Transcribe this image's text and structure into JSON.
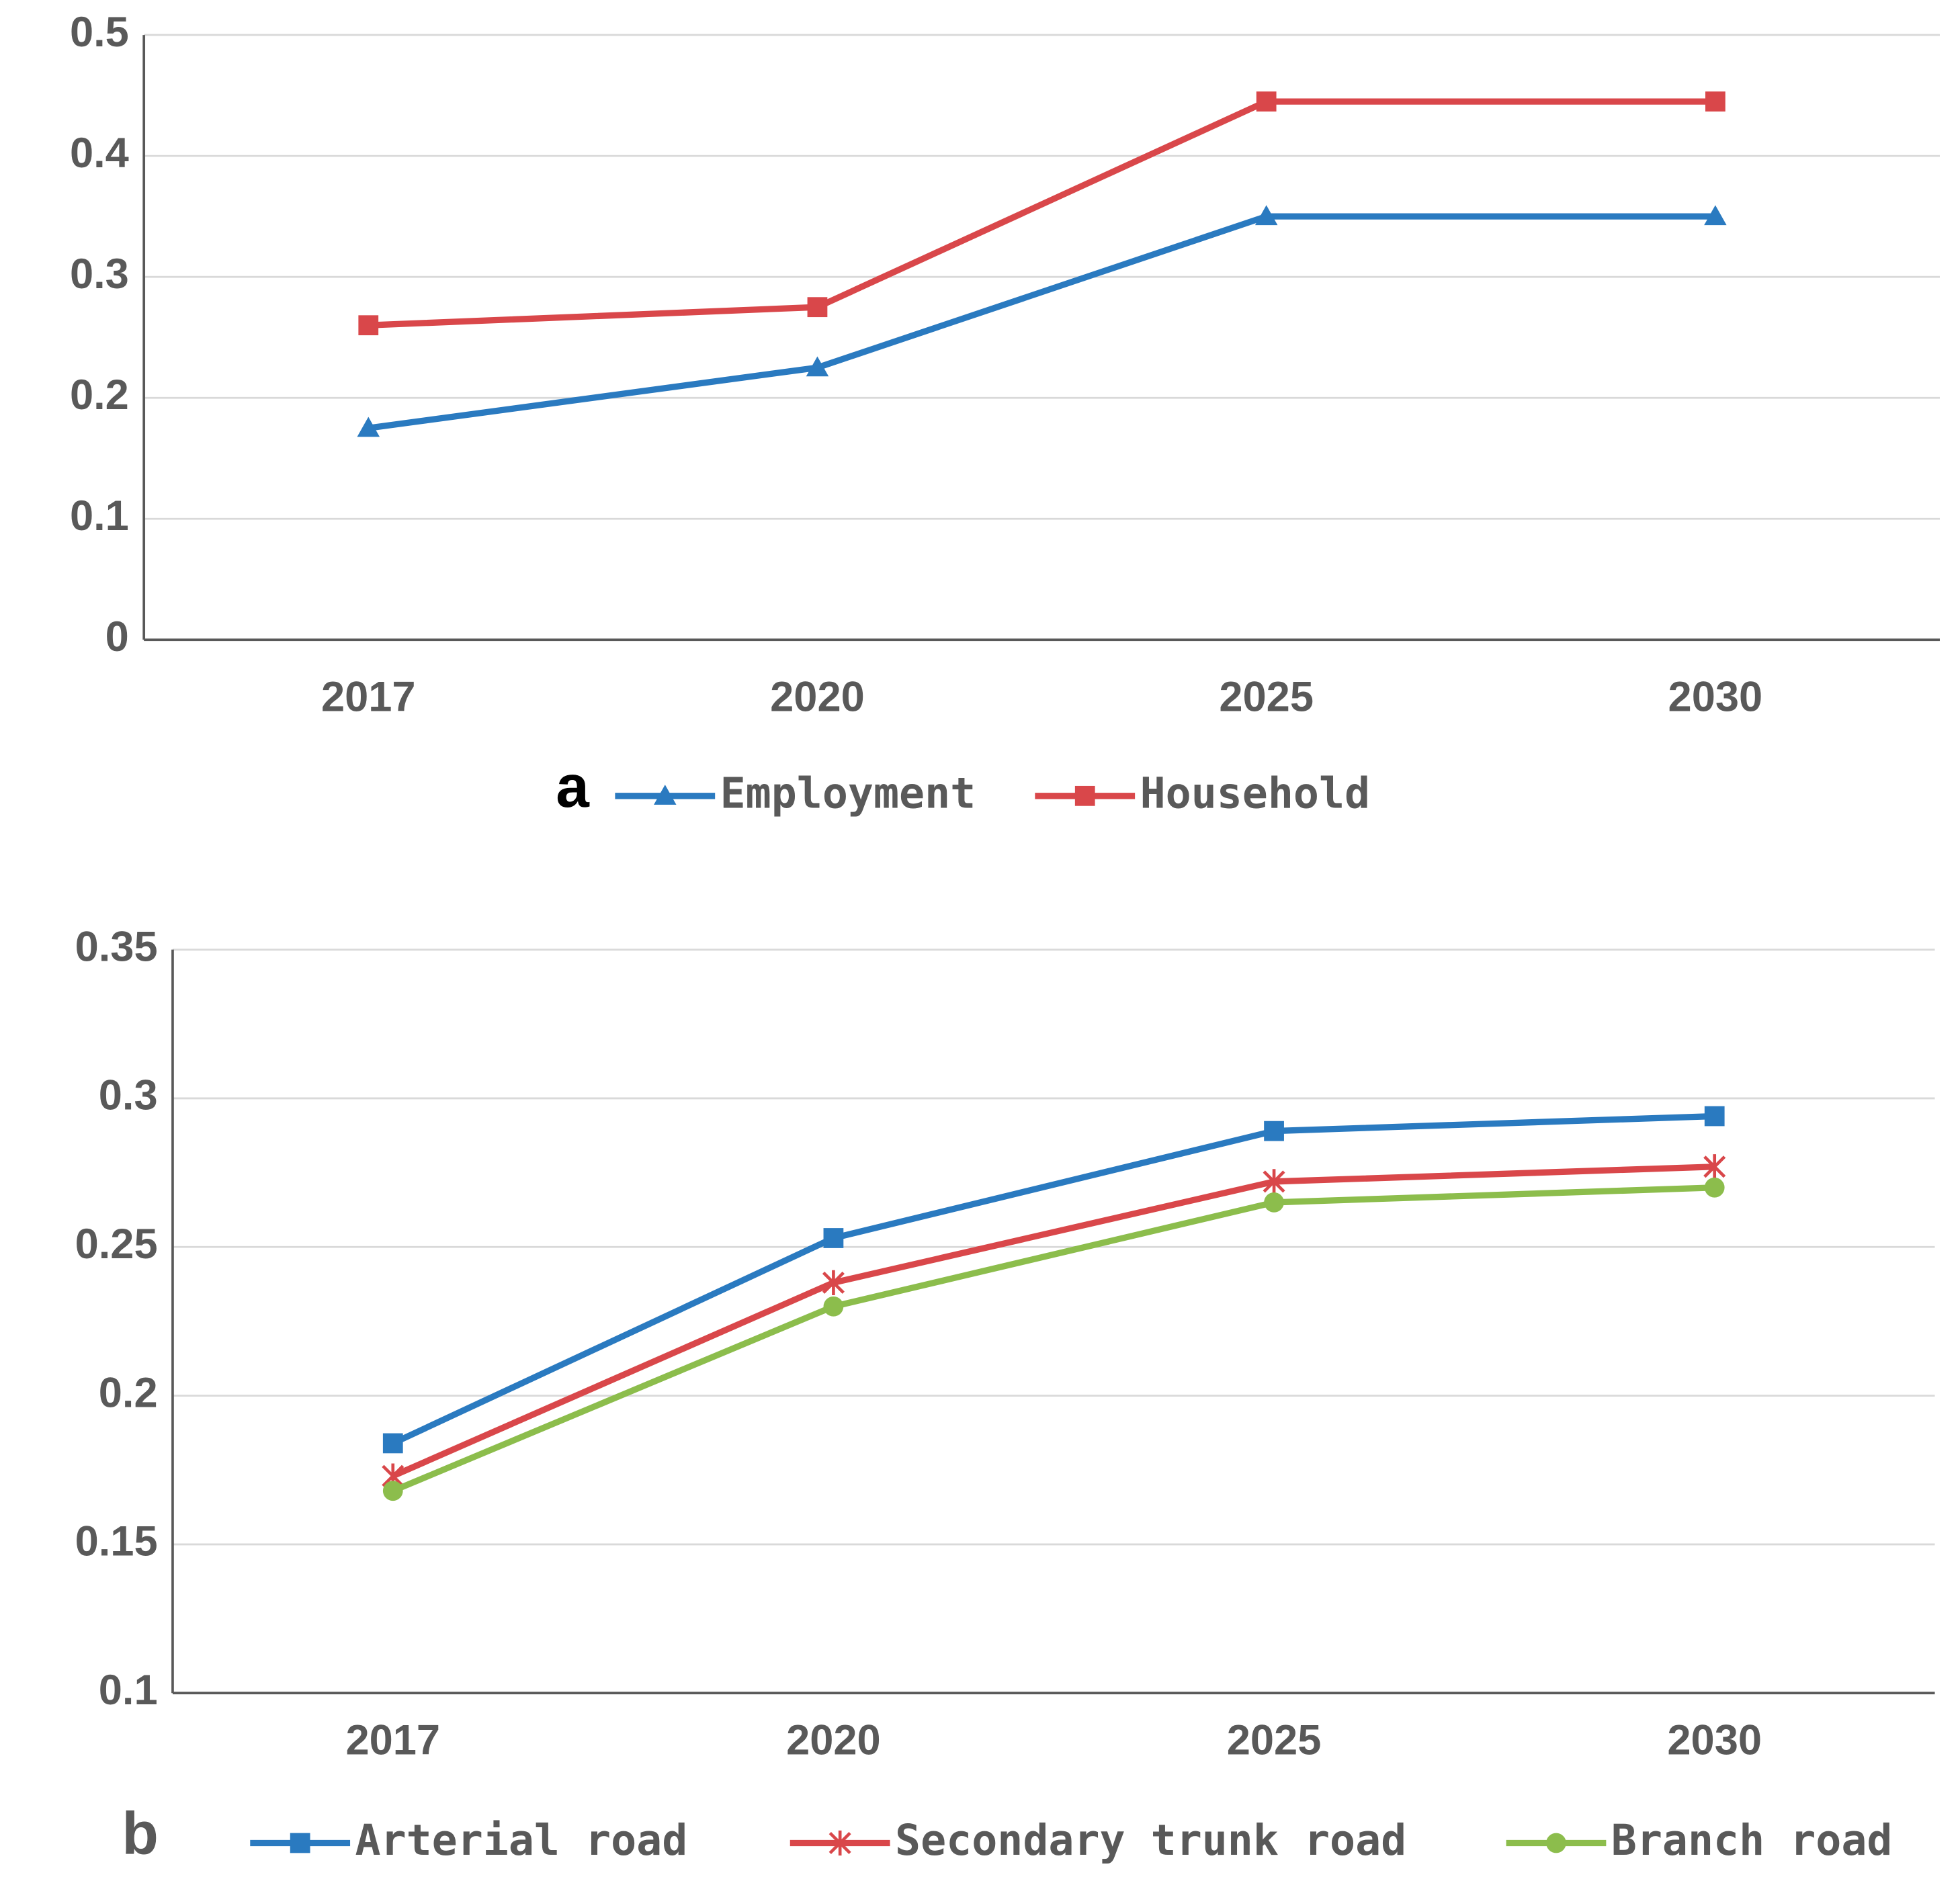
{
  "chart_data": [
    {
      "type": "line",
      "label": "a",
      "categories": [
        "2017",
        "2020",
        "2025",
        "2030"
      ],
      "series": [
        {
          "name": "Employment",
          "color": "#2a7ac0",
          "marker": "triangle",
          "values": [
            0.175,
            0.225,
            0.35,
            0.35
          ]
        },
        {
          "name": "Household",
          "color": "#d9474a",
          "marker": "square",
          "values": [
            0.26,
            0.275,
            0.445,
            0.445
          ]
        }
      ],
      "ylim": [
        0,
        0.5
      ],
      "yticks": [
        0,
        0.1,
        0.2,
        0.3,
        0.4,
        0.5
      ],
      "grid": true
    },
    {
      "type": "line",
      "label": "b",
      "categories": [
        "2017",
        "2020",
        "2025",
        "2030"
      ],
      "series": [
        {
          "name": "Arterial road",
          "color": "#2a7ac0",
          "marker": "square",
          "values": [
            0.184,
            0.253,
            0.289,
            0.294
          ]
        },
        {
          "name": "Secondary trunk road",
          "color": "#d9474a",
          "marker": "star",
          "values": [
            0.173,
            0.238,
            0.272,
            0.277
          ]
        },
        {
          "name": "Branch road",
          "color": "#8cbd4c",
          "marker": "circle",
          "values": [
            0.168,
            0.23,
            0.265,
            0.27
          ]
        }
      ],
      "ylim": [
        0.1,
        0.35
      ],
      "yticks": [
        0.1,
        0.15,
        0.2,
        0.25,
        0.3,
        0.35
      ],
      "grid": true
    }
  ]
}
